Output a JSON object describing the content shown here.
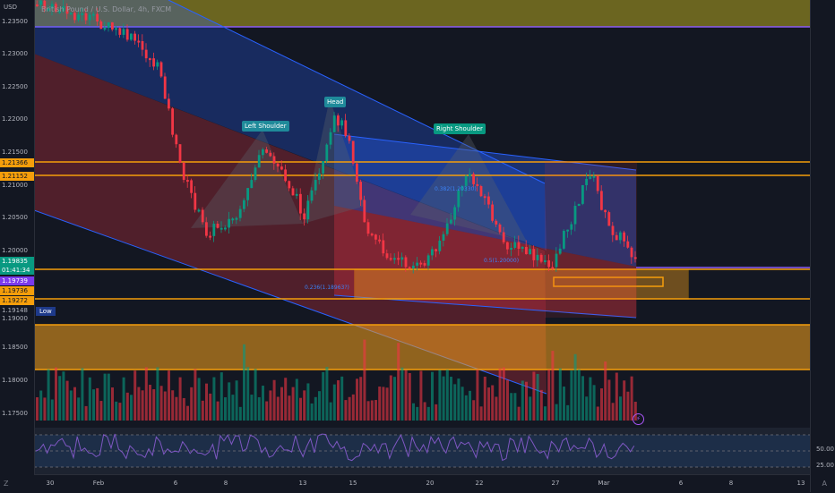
{
  "header": {
    "title": "British Pound / U.S. Dollar, 4h, FXCM"
  },
  "price_axis": {
    "currency": "USD",
    "ticks": [
      "1.23500",
      "1.23000",
      "1.22500",
      "1.22000",
      "1.21500",
      "1.21000",
      "1.20500",
      "1.20000",
      "1.19000",
      "1.18500",
      "1.18000",
      "1.17500"
    ]
  },
  "price_tags": [
    {
      "text": "1.21366",
      "color": "#f59e0b"
    },
    {
      "text": "1.21152",
      "color": "#f59e0b"
    },
    {
      "text": "1.19835",
      "color": "#089981"
    },
    {
      "text": "01:41:34",
      "color": "#089981"
    },
    {
      "text": "1.19739",
      "color": "#7c3aed"
    },
    {
      "text": "1.19736",
      "color": "#f59e0b"
    },
    {
      "text": "1.19272",
      "color": "#f59e0b"
    },
    {
      "text": "1.19148",
      "color": "#131722"
    }
  ],
  "pattern_labels": {
    "left_shoulder": "Left Shoulder",
    "head": "Head",
    "right_shoulder": "Right Shoulder",
    "low": "Low"
  },
  "fib_labels": [
    "0.236(1.18963?)",
    "0.5(1.20000)",
    "0.382(1.20330)"
  ],
  "time_axis": [
    "30",
    "Feb",
    "6",
    "8",
    "13",
    "15",
    "20",
    "22",
    "27",
    "Mar",
    "6",
    "8",
    "13"
  ],
  "rsi_axis": [
    "50.00",
    "25.00"
  ],
  "colors": {
    "bull": "#089981",
    "bear": "#f23645",
    "channel": "#2962ff",
    "zone": "#f7a21b"
  }
}
